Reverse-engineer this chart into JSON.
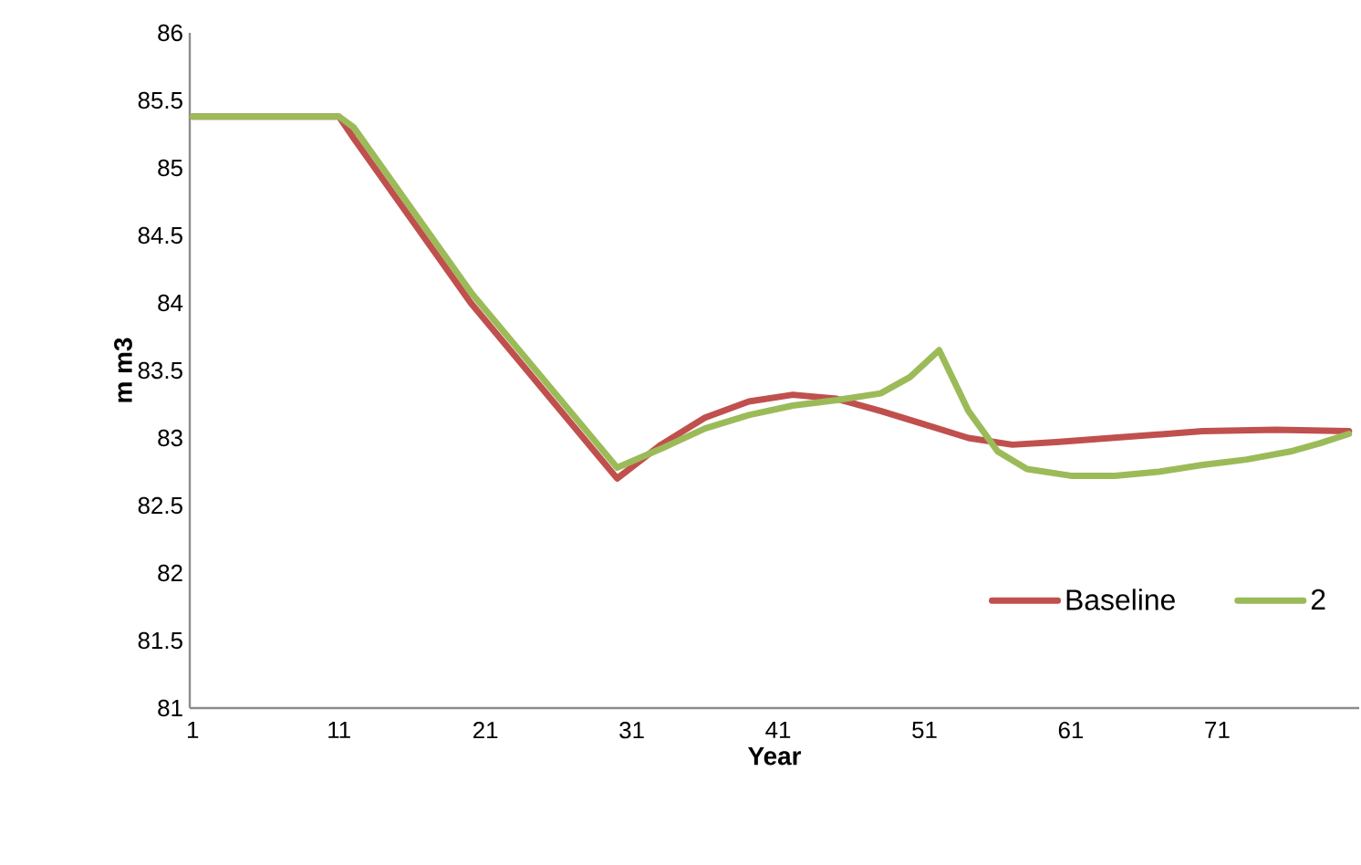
{
  "chart_data": {
    "type": "line",
    "xlabel": "Year",
    "ylabel": "m m3",
    "xlim": [
      0.8,
      80.7
    ],
    "xticks": [
      1,
      11,
      21,
      31,
      41,
      51,
      61,
      71
    ],
    "ylim": [
      81,
      86
    ],
    "yticks": [
      81,
      81.5,
      82,
      82.5,
      83,
      83.5,
      84,
      84.5,
      85,
      85.5,
      86
    ],
    "grid": false,
    "legend": "bottom right",
    "marker": "none",
    "line_style": "solid",
    "series": [
      {
        "name": "Baseline",
        "color": "#c0504d",
        "x": [
          1,
          11,
          12,
          20,
          30,
          33,
          36,
          39,
          42,
          45,
          48,
          51,
          54,
          57,
          60,
          65,
          70,
          75,
          80
        ],
        "values": [
          85.38,
          85.38,
          85.22,
          84.0,
          82.7,
          82.95,
          83.15,
          83.27,
          83.32,
          83.29,
          83.2,
          83.1,
          83.0,
          82.95,
          82.97,
          83.01,
          83.05,
          83.06,
          83.05
        ]
      },
      {
        "name": "2",
        "color": "#9bbb59",
        "x": [
          1,
          11,
          12,
          20,
          30,
          33,
          36,
          39,
          42,
          45,
          48,
          50,
          52,
          54,
          56,
          58,
          61,
          64,
          67,
          70,
          73,
          76,
          78,
          80
        ],
        "values": [
          85.38,
          85.38,
          85.3,
          84.08,
          82.78,
          82.92,
          83.07,
          83.17,
          83.24,
          83.28,
          83.33,
          83.45,
          83.65,
          83.2,
          82.9,
          82.77,
          82.72,
          82.72,
          82.75,
          82.8,
          82.84,
          82.9,
          82.96,
          83.03
        ]
      }
    ]
  }
}
